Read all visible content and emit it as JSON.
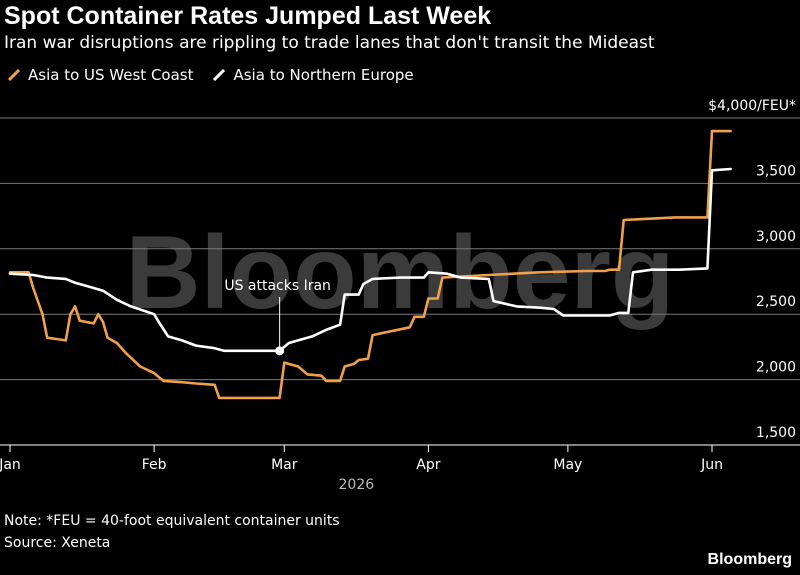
{
  "header": {
    "title": "Spot Container Rates Jumped Last Week",
    "subtitle": "Iran war disruptions are rippling to trade lanes that don't transit the Mideast"
  },
  "footer": {
    "note": "Note: *FEU = 40-foot equivalent container units",
    "source": "Source: Xeneta",
    "brand": "Bloomberg"
  },
  "watermark": "Bloomberg",
  "colors": {
    "background": "#000000",
    "asia_us": "#f0a04b",
    "asia_europe": "#ffffff",
    "grid": "#7a7a7a",
    "watermark": "#3b3b3b"
  },
  "chart_data": {
    "type": "line",
    "year_label": "2026",
    "unit_label": "$4,000/FEU*",
    "ylim": [
      1500,
      4000
    ],
    "yticks": [
      {
        "value": 1500,
        "label": "1,500"
      },
      {
        "value": 2000,
        "label": "2,000"
      },
      {
        "value": 2500,
        "label": "2,500"
      },
      {
        "value": 3000,
        "label": "3,000"
      },
      {
        "value": 3500,
        "label": "3,500"
      }
    ],
    "xlim": [
      "2026-01-01",
      "2026-06-08"
    ],
    "xticks": [
      {
        "date": "2026-01-01",
        "label": "Jan"
      },
      {
        "date": "2026-02-01",
        "label": "Feb"
      },
      {
        "date": "2026-03-01",
        "label": "Mar"
      },
      {
        "date": "2026-04-01",
        "label": "Apr"
      },
      {
        "date": "2026-05-01",
        "label": "May"
      },
      {
        "date": "2026-06-01",
        "label": "Jun"
      }
    ],
    "grid": true,
    "legend_position": "top-left",
    "annotation": {
      "text": "US attacks Iran",
      "date": "2026-02-28",
      "value": 2220
    },
    "series": [
      {
        "name": "Asia to US West Coast",
        "color": "#f0a04b",
        "points": [
          [
            "2026-01-01",
            2820
          ],
          [
            "2026-01-05",
            2820
          ],
          [
            "2026-01-06",
            2700
          ],
          [
            "2026-01-08",
            2500
          ],
          [
            "2026-01-09",
            2320
          ],
          [
            "2026-01-13",
            2300
          ],
          [
            "2026-01-14",
            2500
          ],
          [
            "2026-01-15",
            2560
          ],
          [
            "2026-01-16",
            2450
          ],
          [
            "2026-01-19",
            2430
          ],
          [
            "2026-01-20",
            2500
          ],
          [
            "2026-01-21",
            2440
          ],
          [
            "2026-01-22",
            2320
          ],
          [
            "2026-01-24",
            2280
          ],
          [
            "2026-01-26",
            2200
          ],
          [
            "2026-01-29",
            2100
          ],
          [
            "2026-02-01",
            2050
          ],
          [
            "2026-02-03",
            1990
          ],
          [
            "2026-02-07",
            1980
          ],
          [
            "2026-02-10",
            1970
          ],
          [
            "2026-02-14",
            1960
          ],
          [
            "2026-02-15",
            1860
          ],
          [
            "2026-02-28",
            1860
          ],
          [
            "2026-03-01",
            2130
          ],
          [
            "2026-03-04",
            2100
          ],
          [
            "2026-03-06",
            2040
          ],
          [
            "2026-03-09",
            2030
          ],
          [
            "2026-03-10",
            1990
          ],
          [
            "2026-03-13",
            1990
          ],
          [
            "2026-03-14",
            2100
          ],
          [
            "2026-03-16",
            2120
          ],
          [
            "2026-03-17",
            2150
          ],
          [
            "2026-03-19",
            2160
          ],
          [
            "2026-03-20",
            2340
          ],
          [
            "2026-03-28",
            2400
          ],
          [
            "2026-03-29",
            2480
          ],
          [
            "2026-03-31",
            2480
          ],
          [
            "2026-04-01",
            2620
          ],
          [
            "2026-04-03",
            2620
          ],
          [
            "2026-04-04",
            2780
          ],
          [
            "2026-04-14",
            2800
          ],
          [
            "2026-04-25",
            2820
          ],
          [
            "2026-05-05",
            2830
          ],
          [
            "2026-05-09",
            2830
          ],
          [
            "2026-05-10",
            2840
          ],
          [
            "2026-05-12",
            2840
          ],
          [
            "2026-05-13",
            3220
          ],
          [
            "2026-05-24",
            3240
          ],
          [
            "2026-05-31",
            3240
          ],
          [
            "2026-06-01",
            3900
          ],
          [
            "2026-06-05",
            3900
          ]
        ]
      },
      {
        "name": "Asia to Northern Europe",
        "color": "#ffffff",
        "points": [
          [
            "2026-01-01",
            2810
          ],
          [
            "2026-01-06",
            2800
          ],
          [
            "2026-01-09",
            2780
          ],
          [
            "2026-01-13",
            2770
          ],
          [
            "2026-01-15",
            2740
          ],
          [
            "2026-01-19",
            2700
          ],
          [
            "2026-01-21",
            2680
          ],
          [
            "2026-01-24",
            2610
          ],
          [
            "2026-01-27",
            2560
          ],
          [
            "2026-02-01",
            2500
          ],
          [
            "2026-02-02",
            2440
          ],
          [
            "2026-02-04",
            2330
          ],
          [
            "2026-02-07",
            2300
          ],
          [
            "2026-02-10",
            2260
          ],
          [
            "2026-02-14",
            2240
          ],
          [
            "2026-02-16",
            2220
          ],
          [
            "2026-02-28",
            2220
          ],
          [
            "2026-03-02",
            2280
          ],
          [
            "2026-03-07",
            2330
          ],
          [
            "2026-03-10",
            2380
          ],
          [
            "2026-03-13",
            2420
          ],
          [
            "2026-03-14",
            2650
          ],
          [
            "2026-03-17",
            2650
          ],
          [
            "2026-03-18",
            2730
          ],
          [
            "2026-03-20",
            2770
          ],
          [
            "2026-03-26",
            2780
          ],
          [
            "2026-03-31",
            2780
          ],
          [
            "2026-04-01",
            2820
          ],
          [
            "2026-04-05",
            2810
          ],
          [
            "2026-04-08",
            2780
          ],
          [
            "2026-04-14",
            2770
          ],
          [
            "2026-04-15",
            2600
          ],
          [
            "2026-04-20",
            2560
          ],
          [
            "2026-04-25",
            2550
          ],
          [
            "2026-04-28",
            2540
          ],
          [
            "2026-04-30",
            2490
          ],
          [
            "2026-05-10",
            2490
          ],
          [
            "2026-05-12",
            2510
          ],
          [
            "2026-05-14",
            2510
          ],
          [
            "2026-05-15",
            2820
          ],
          [
            "2026-05-19",
            2840
          ],
          [
            "2026-05-25",
            2840
          ],
          [
            "2026-05-31",
            2850
          ],
          [
            "2026-06-01",
            3600
          ],
          [
            "2026-06-05",
            3610
          ]
        ]
      }
    ]
  }
}
